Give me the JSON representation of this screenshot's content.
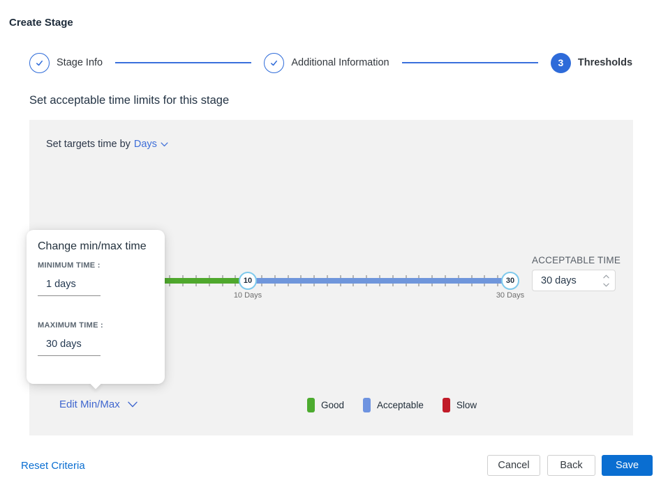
{
  "page": {
    "title": "Create Stage",
    "subtitle": "Set acceptable time limits for this stage"
  },
  "stepper": {
    "steps": [
      {
        "label": "Stage Info",
        "state": "complete"
      },
      {
        "label": "Additional Information",
        "state": "complete"
      },
      {
        "label": "Thresholds",
        "state": "active",
        "number": "3"
      }
    ]
  },
  "panel": {
    "set_targets_prefix": "Set targets time by",
    "unit_dropdown": {
      "value": "Days"
    },
    "slider": {
      "min_handle": "10",
      "max_handle": "30",
      "min_label": "10 Days",
      "max_label": "30 Days",
      "total_days": 30
    },
    "acceptable_time": {
      "label": "ACCEPTABLE TIME",
      "value": "30 days"
    },
    "edit_minmax_label": "Edit Min/Max",
    "legend": [
      {
        "label": "Good",
        "color": "#4cab2f"
      },
      {
        "label": "Acceptable",
        "color": "#6e93e0"
      },
      {
        "label": "Slow",
        "color": "#c11b28"
      }
    ]
  },
  "popup": {
    "title": "Change min/max time",
    "min_label": "MINIMUM TIME :",
    "min_value": "1 days",
    "max_label": "MAXIMUM TIME :",
    "max_value": "30 days"
  },
  "footer": {
    "reset_label": "Reset Criteria",
    "cancel_label": "Cancel",
    "back_label": "Back",
    "save_label": "Save"
  },
  "colors": {
    "accent_blue": "#2e6bd9",
    "link_blue": "#3f6fd8",
    "action_blue": "#0a6ed1",
    "track_green": "#4fa82d",
    "track_blue": "#6f96db",
    "slow_red": "#c11b28",
    "handle_border": "#7ec9ec",
    "panel_bg": "#f2f2f2"
  }
}
